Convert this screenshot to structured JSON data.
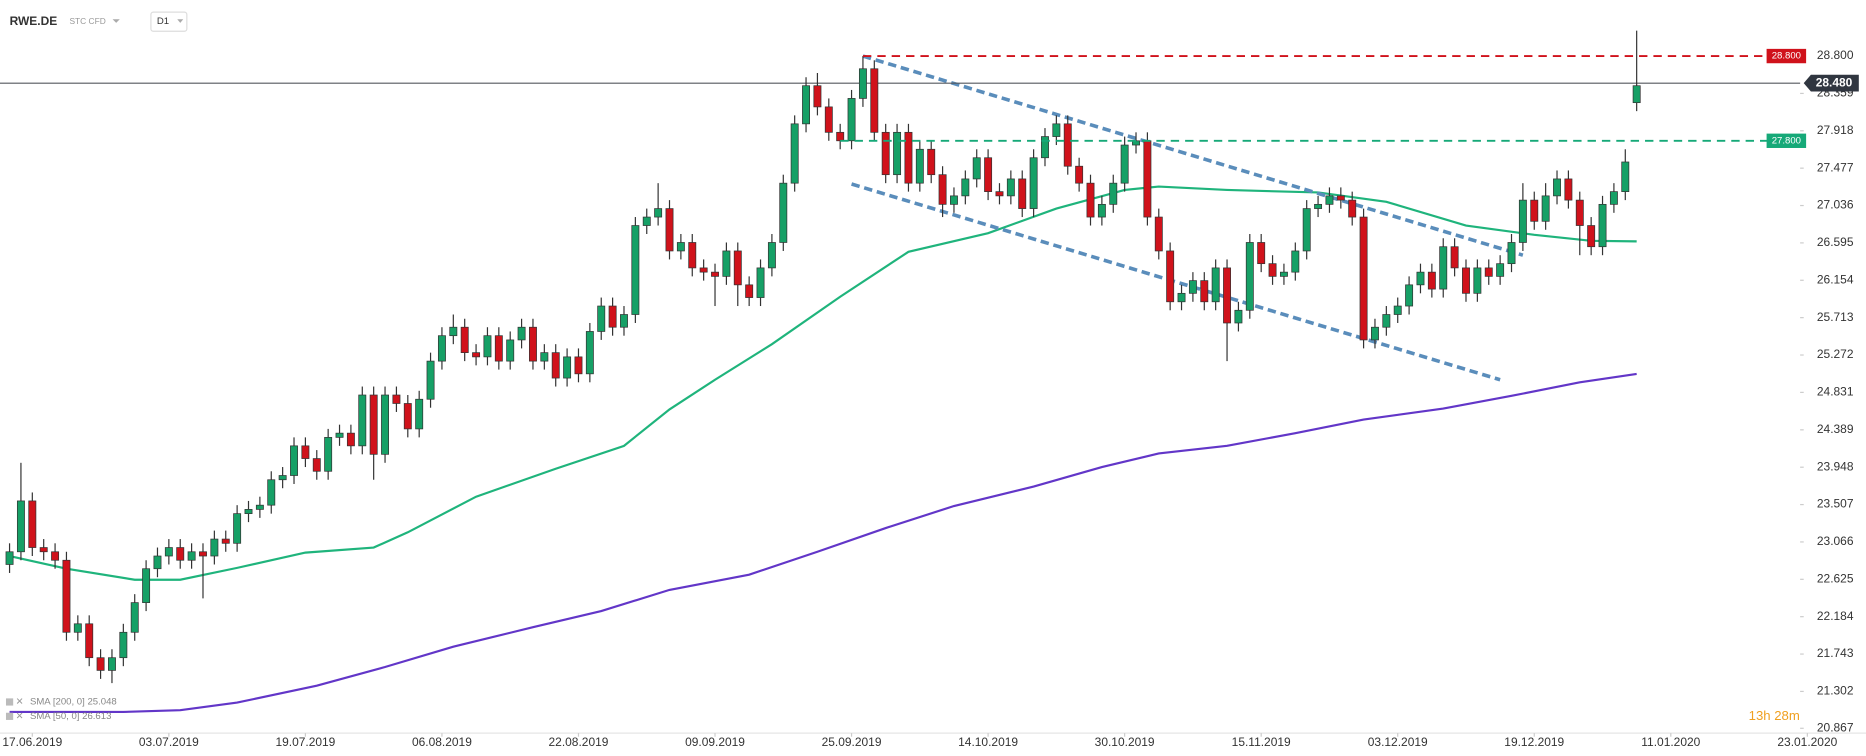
{
  "chart_data": {
    "type": "candlestick",
    "title": "RWE.DE",
    "subtitle": "STC CFD",
    "timeframe": "D1",
    "countdown": "13h 28m",
    "up_color": "#16a066",
    "down_color": "#d0121b",
    "open": [
      22.8,
      22.95,
      23.55,
      23.0,
      22.95,
      22.85,
      22.0,
      22.1,
      21.7,
      21.55,
      21.7,
      22.0,
      22.35,
      22.75,
      22.9,
      23.0,
      22.85,
      22.95,
      22.9,
      23.1,
      23.05,
      23.4,
      23.45,
      23.5,
      23.8,
      23.85,
      24.2,
      24.05,
      23.9,
      24.3,
      24.35,
      24.2,
      24.8,
      24.1,
      24.8,
      24.7,
      24.4,
      24.75,
      25.2,
      25.5,
      25.6,
      25.3,
      25.25,
      25.5,
      25.2,
      25.45,
      25.6,
      25.2,
      25.3,
      25.0,
      25.25,
      25.05,
      25.55,
      25.85,
      25.6,
      25.75,
      26.8,
      26.9,
      27.0,
      26.5,
      26.6,
      26.3,
      26.25,
      26.2,
      26.5,
      26.1,
      25.95,
      26.3,
      26.6,
      27.3,
      28.0,
      28.45,
      28.2,
      27.9,
      27.8,
      28.3,
      28.65,
      27.9,
      27.4,
      27.9,
      27.3,
      27.7,
      27.4,
      27.05,
      27.15,
      27.35,
      27.6,
      27.2,
      27.15,
      27.35,
      27.0,
      27.6,
      27.85,
      28.0,
      27.5,
      27.3,
      26.9,
      27.05,
      27.3,
      27.75,
      27.8,
      26.9,
      26.5,
      25.9,
      26.0,
      26.15,
      25.9,
      26.3,
      25.65,
      25.8,
      26.6,
      26.35,
      26.2,
      26.25,
      26.5,
      27.0,
      27.05,
      27.15,
      27.1,
      26.9,
      25.45,
      25.6,
      25.75,
      25.85,
      26.1,
      26.25,
      26.05,
      26.55,
      26.3,
      26.0,
      26.3,
      26.2,
      26.35,
      26.6,
      27.1,
      26.85,
      27.15,
      27.35,
      27.1,
      26.8,
      26.55,
      27.05,
      27.2,
      28.25
    ],
    "high": [
      23.05,
      24.0,
      23.65,
      23.1,
      23.05,
      22.95,
      22.2,
      22.2,
      21.8,
      21.8,
      22.1,
      22.45,
      22.85,
      23.0,
      23.1,
      23.1,
      23.05,
      23.05,
      23.2,
      23.2,
      23.5,
      23.55,
      23.6,
      23.9,
      23.95,
      24.3,
      24.3,
      24.15,
      24.4,
      24.45,
      24.45,
      24.9,
      24.9,
      24.9,
      24.9,
      24.8,
      24.85,
      25.3,
      25.6,
      25.75,
      25.7,
      25.4,
      25.6,
      25.6,
      25.55,
      25.7,
      25.7,
      25.4,
      25.4,
      25.35,
      25.35,
      25.65,
      25.95,
      25.95,
      25.85,
      26.9,
      27.0,
      27.3,
      27.1,
      26.7,
      26.7,
      26.4,
      26.35,
      26.6,
      26.6,
      26.2,
      26.4,
      26.7,
      27.4,
      28.1,
      28.55,
      28.6,
      28.3,
      28.0,
      28.4,
      28.8,
      28.75,
      28.0,
      28.0,
      28.0,
      27.8,
      27.8,
      27.5,
      27.25,
      27.45,
      27.7,
      27.7,
      27.3,
      27.45,
      27.45,
      27.7,
      27.95,
      28.1,
      28.1,
      27.6,
      27.4,
      27.15,
      27.4,
      27.85,
      27.9,
      27.9,
      27.0,
      26.6,
      26.1,
      26.25,
      26.25,
      26.4,
      26.4,
      25.9,
      26.7,
      26.7,
      26.45,
      26.35,
      26.6,
      27.1,
      27.15,
      27.25,
      27.25,
      27.2,
      27.0,
      25.7,
      25.85,
      25.95,
      26.2,
      26.35,
      26.35,
      26.65,
      26.65,
      26.4,
      26.4,
      26.4,
      26.45,
      26.7,
      27.3,
      27.2,
      27.3,
      27.45,
      27.45,
      27.2,
      26.9,
      27.15,
      27.3,
      27.7,
      29.1
    ],
    "low": [
      22.7,
      22.85,
      22.9,
      22.85,
      22.75,
      21.9,
      21.9,
      21.6,
      21.45,
      21.4,
      21.6,
      21.9,
      22.25,
      22.65,
      22.8,
      22.75,
      22.75,
      22.4,
      22.8,
      22.95,
      22.95,
      23.3,
      23.35,
      23.4,
      23.7,
      23.75,
      23.95,
      23.8,
      23.8,
      24.2,
      24.1,
      24.1,
      23.8,
      24.0,
      24.6,
      24.3,
      24.3,
      24.65,
      25.1,
      25.4,
      25.2,
      25.15,
      25.15,
      25.1,
      25.1,
      25.35,
      25.1,
      25.1,
      24.9,
      24.9,
      24.95,
      24.95,
      25.45,
      25.5,
      25.5,
      25.65,
      26.7,
      26.8,
      26.4,
      26.4,
      26.2,
      26.15,
      25.85,
      26.1,
      25.85,
      25.85,
      25.85,
      26.2,
      26.5,
      27.2,
      27.9,
      28.1,
      27.8,
      27.7,
      27.7,
      28.2,
      27.8,
      27.3,
      27.3,
      27.2,
      27.2,
      27.3,
      26.9,
      26.95,
      27.05,
      27.25,
      27.1,
      27.05,
      27.05,
      26.9,
      26.9,
      27.5,
      27.75,
      27.4,
      27.2,
      26.8,
      26.8,
      26.95,
      27.2,
      27.65,
      26.8,
      26.4,
      25.8,
      25.8,
      25.9,
      25.8,
      25.8,
      25.2,
      25.55,
      25.7,
      26.25,
      26.1,
      26.1,
      26.15,
      26.4,
      26.9,
      26.95,
      27.0,
      26.8,
      25.35,
      25.35,
      25.5,
      25.65,
      25.75,
      26.0,
      25.95,
      25.95,
      26.2,
      25.9,
      25.9,
      26.1,
      26.1,
      26.25,
      26.5,
      26.75,
      26.75,
      27.05,
      27.0,
      26.45,
      26.45,
      26.45,
      26.95,
      27.1,
      28.15
    ],
    "close": [
      22.95,
      23.55,
      23.0,
      22.95,
      22.85,
      22.0,
      22.1,
      21.7,
      21.55,
      21.7,
      22.0,
      22.35,
      22.75,
      22.9,
      23.0,
      22.85,
      22.95,
      22.9,
      23.1,
      23.05,
      23.4,
      23.45,
      23.5,
      23.8,
      23.85,
      24.2,
      24.05,
      23.9,
      24.3,
      24.35,
      24.2,
      24.8,
      24.1,
      24.8,
      24.7,
      24.4,
      24.75,
      25.2,
      25.5,
      25.6,
      25.3,
      25.25,
      25.5,
      25.2,
      25.45,
      25.6,
      25.2,
      25.3,
      25.0,
      25.25,
      25.05,
      25.55,
      25.85,
      25.6,
      25.75,
      26.8,
      26.9,
      27.0,
      26.5,
      26.6,
      26.3,
      26.25,
      26.2,
      26.5,
      26.1,
      25.95,
      26.3,
      26.6,
      27.3,
      28.0,
      28.45,
      28.2,
      27.9,
      27.8,
      28.3,
      28.65,
      27.9,
      27.4,
      27.9,
      27.3,
      27.7,
      27.4,
      27.05,
      27.15,
      27.35,
      27.6,
      27.2,
      27.15,
      27.35,
      27.0,
      27.6,
      27.85,
      28.0,
      27.5,
      27.3,
      26.9,
      27.05,
      27.3,
      27.75,
      27.8,
      26.9,
      26.5,
      25.9,
      26.0,
      26.15,
      25.9,
      26.3,
      25.65,
      25.8,
      26.6,
      26.35,
      26.2,
      26.25,
      26.5,
      27.0,
      27.05,
      27.15,
      27.1,
      26.9,
      25.45,
      25.6,
      25.75,
      25.85,
      26.1,
      26.25,
      26.05,
      26.55,
      26.3,
      26.0,
      26.3,
      26.2,
      26.35,
      26.6,
      27.1,
      26.85,
      27.15,
      27.35,
      27.1,
      26.8,
      26.55,
      27.05,
      27.2,
      27.55,
      28.45
    ],
    "lines": [
      {
        "name": "SMA [200, 0] 25.048",
        "color": "#6236c8",
        "x": [
          0,
          10,
          15,
          20,
          27,
          33,
          39,
          46,
          52,
          58,
          65,
          71,
          77,
          83,
          90,
          96,
          101,
          107,
          113,
          119,
          126,
          132,
          138,
          143
        ],
        "values": [
          21.06,
          21.06,
          21.08,
          21.17,
          21.37,
          21.59,
          21.83,
          22.06,
          22.25,
          22.5,
          22.68,
          22.95,
          23.23,
          23.49,
          23.72,
          23.95,
          24.11,
          24.2,
          24.35,
          24.51,
          24.64,
          24.79,
          24.95,
          25.048
        ]
      },
      {
        "name": "SMA [50, 0] 26.613",
        "color": "#1fb47c",
        "x": [
          0,
          5,
          11,
          15,
          20,
          26,
          32,
          35,
          41,
          48,
          54,
          58,
          62,
          67,
          73,
          79,
          86,
          92,
          98,
          101,
          107,
          115,
          121,
          128,
          134,
          139,
          143
        ],
        "values": [
          22.9,
          22.75,
          22.62,
          22.62,
          22.76,
          22.94,
          23.0,
          23.18,
          23.6,
          23.93,
          24.2,
          24.63,
          24.98,
          25.4,
          25.96,
          26.49,
          26.71,
          27.0,
          27.22,
          27.26,
          27.22,
          27.19,
          27.08,
          26.8,
          26.69,
          26.62,
          26.613
        ]
      }
    ],
    "trendlines": [
      {
        "color": "#5a8dbb",
        "x": [
          75,
          133
        ],
        "values": [
          28.8,
          26.45
        ]
      },
      {
        "color": "#5a8dbb",
        "x": [
          74,
          131
        ],
        "values": [
          27.29,
          24.98
        ]
      }
    ],
    "hlines": [
      {
        "value": 28.8,
        "label": "28.800",
        "color": "#d0121b",
        "x": 75
      },
      {
        "value": 27.8,
        "label": "27.800",
        "color": "#16a978",
        "x": 73
      }
    ],
    "last_price": {
      "value": 28.48,
      "label": "28.480"
    },
    "xlim": [
      -0.84,
      157.05
    ],
    "ylim": [
      20.81,
      29.46
    ],
    "xticks": [
      {
        "value": 2,
        "label": "17.06.2019"
      },
      {
        "value": 14,
        "label": "03.07.2019"
      },
      {
        "value": 26,
        "label": "19.07.2019"
      },
      {
        "value": 38,
        "label": "06.08.2019"
      },
      {
        "value": 50,
        "label": "22.08.2019"
      },
      {
        "value": 62,
        "label": "09.09.2019"
      },
      {
        "value": 74,
        "label": "25.09.2019"
      },
      {
        "value": 86,
        "label": "14.10.2019"
      },
      {
        "value": 98,
        "label": "30.10.2019"
      },
      {
        "value": 110,
        "label": "15.11.2019"
      },
      {
        "value": 122,
        "label": "03.12.2019"
      },
      {
        "value": 134,
        "label": "19.12.2019"
      },
      {
        "value": 146,
        "label": "11.01.2020"
      },
      {
        "value": 158,
        "label": "23.01.2020"
      }
    ],
    "yticks": [
      {
        "value": 28.8,
        "label": "28.800"
      },
      28.359,
      27.918,
      27.477,
      27.036,
      26.595,
      26.154,
      25.713,
      25.272,
      24.831,
      24.389,
      23.948,
      23.507,
      23.066,
      22.625,
      22.184,
      21.743,
      21.302,
      20.867
    ]
  }
}
